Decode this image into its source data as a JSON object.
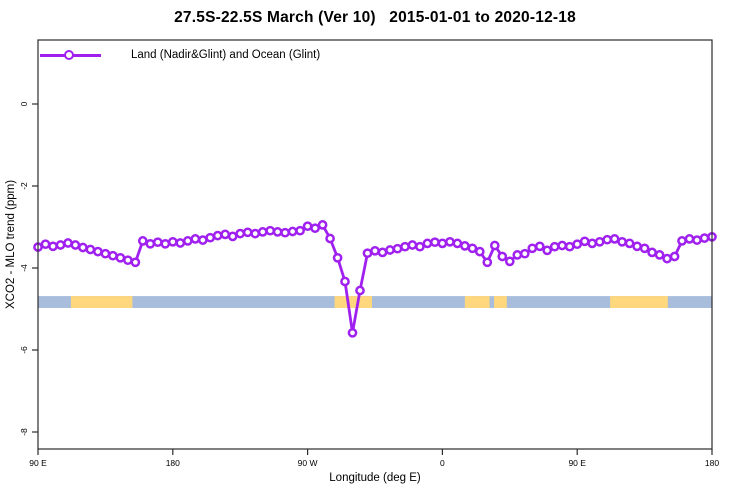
{
  "title": "27.5S-22.5S March (Ver 10)   2015-01-01 to 2020-12-18",
  "legend": {
    "label": "Land (Nadir&Glint) and Ocean (Glint)"
  },
  "colors": {
    "series_purple": "#A020F0",
    "ocean_band_blue": "#A8BDDB",
    "land_band_yellow": "#FFD87D",
    "axis_black": "#2b2b2b"
  },
  "chart_data": {
    "type": "line",
    "title": "27.5S-22.5S March (Ver 10)   2015-01-01 to 2020-12-18",
    "xlabel": "Longitude (deg E)",
    "ylabel": "XCO2 - MLO trend (ppm)",
    "xlim_axis_deg": [
      90,
      540
    ],
    "ylim_ppm": [
      -8.4,
      1.55
    ],
    "grid": false,
    "legend_position": "top-left",
    "x_ticks": [
      {
        "pos": 90,
        "label": "90 E"
      },
      {
        "pos": 180,
        "label": "180"
      },
      {
        "pos": 270,
        "label": "90 W"
      },
      {
        "pos": 360,
        "label": "0"
      },
      {
        "pos": 450,
        "label": "90 E"
      },
      {
        "pos": 540,
        "label": "180"
      }
    ],
    "y_ticks": [
      {
        "pos": 0,
        "label": "0"
      },
      {
        "pos": -2,
        "label": "-2"
      },
      {
        "pos": -4,
        "label": "-4"
      },
      {
        "pos": -6,
        "label": "-6"
      },
      {
        "pos": -8,
        "label": "-8"
      }
    ],
    "series": [
      {
        "name": "Land (Nadir&Glint) and Ocean (Glint)",
        "color": "#A020F0",
        "marker": "open-circle",
        "x_axis_deg": [
          90,
          95,
          100,
          105,
          110,
          115,
          120,
          125,
          130,
          135,
          140,
          145,
          150,
          155,
          160,
          165,
          170,
          175,
          180,
          185,
          190,
          195,
          200,
          205,
          210,
          215,
          220,
          225,
          230,
          235,
          240,
          245,
          250,
          255,
          260,
          265,
          270,
          275,
          280,
          285,
          290,
          295,
          300,
          305,
          310,
          315,
          320,
          325,
          330,
          335,
          340,
          345,
          350,
          355,
          360,
          365,
          370,
          375,
          380,
          385,
          390,
          395,
          400,
          405,
          410,
          415,
          420,
          425,
          430,
          435,
          440,
          445,
          450,
          455,
          460,
          465,
          470,
          475,
          480,
          485,
          490,
          495,
          500,
          505,
          510,
          515,
          520,
          525,
          530,
          535,
          540
        ],
        "values_ppm": [
          -3.49,
          -3.42,
          -3.47,
          -3.44,
          -3.39,
          -3.44,
          -3.5,
          -3.55,
          -3.6,
          -3.65,
          -3.7,
          -3.75,
          -3.81,
          -3.86,
          -3.34,
          -3.41,
          -3.37,
          -3.41,
          -3.36,
          -3.39,
          -3.34,
          -3.29,
          -3.32,
          -3.26,
          -3.21,
          -3.18,
          -3.23,
          -3.16,
          -3.13,
          -3.16,
          -3.12,
          -3.09,
          -3.12,
          -3.14,
          -3.11,
          -3.09,
          -2.98,
          -3.03,
          -2.95,
          -3.28,
          -3.75,
          -4.33,
          -5.58,
          -4.55,
          -3.64,
          -3.58,
          -3.62,
          -3.56,
          -3.53,
          -3.48,
          -3.44,
          -3.48,
          -3.4,
          -3.37,
          -3.4,
          -3.36,
          -3.4,
          -3.46,
          -3.52,
          -3.6,
          -3.86,
          -3.45,
          -3.72,
          -3.84,
          -3.68,
          -3.65,
          -3.52,
          -3.47,
          -3.57,
          -3.48,
          -3.45,
          -3.48,
          -3.42,
          -3.35,
          -3.4,
          -3.36,
          -3.31,
          -3.29,
          -3.36,
          -3.4,
          -3.47,
          -3.52,
          -3.62,
          -3.68,
          -3.77,
          -3.72,
          -3.34,
          -3.29,
          -3.32,
          -3.27,
          -3.24
        ]
      }
    ],
    "surface_band": {
      "description": "land/ocean strip",
      "center_ppm": -4.83,
      "thickness_ppm": 0.29,
      "ocean_color": "#A8BDDB",
      "land_color": "#FFD87D",
      "land_segments_axis_deg": [
        [
          112,
          153
        ],
        [
          288,
          313
        ],
        [
          375,
          391.5
        ],
        [
          394.5,
          403
        ],
        [
          472,
          510.5
        ]
      ]
    }
  }
}
